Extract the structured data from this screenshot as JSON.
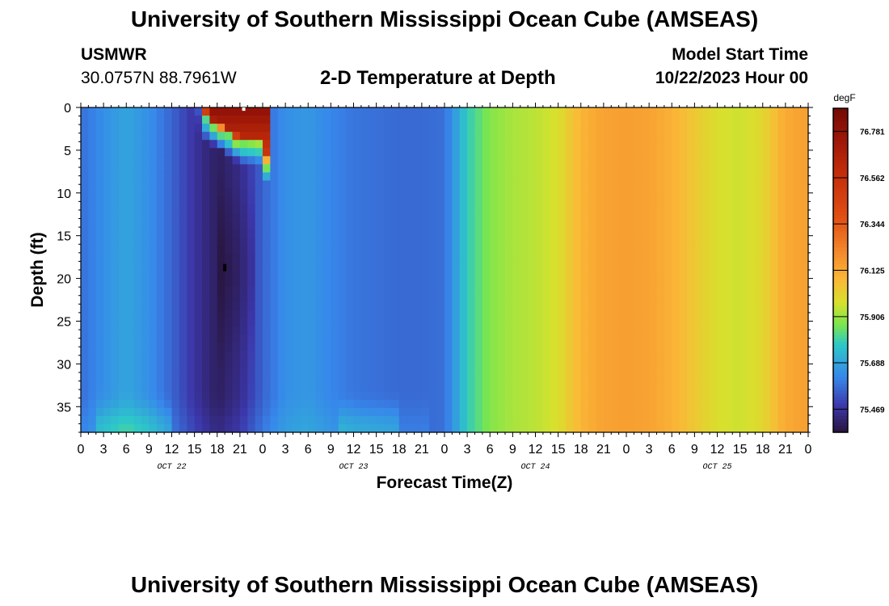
{
  "header": {
    "title": "University of Southern Mississippi Ocean Cube (AMSEAS)",
    "station": "USMWR",
    "coords": "30.0757N  88.7961W",
    "subtitle": "2-D Temperature at Depth",
    "start_label": "Model Start Time",
    "start_value": "10/22/2023 Hour 00"
  },
  "footer": {
    "title": "University of Southern Mississippi Ocean Cube (AMSEAS)"
  },
  "chart_data": {
    "type": "heatmap",
    "title": "2-D Temperature at Depth",
    "xlabel": "Forecast Time(Z)",
    "ylabel": "Depth (ft)",
    "x_range_hours": [
      0,
      96
    ],
    "y_range_ft": [
      0,
      38
    ],
    "x_tick_labels": [
      "0",
      "3",
      "6",
      "9",
      "12",
      "15",
      "18",
      "21",
      "0",
      "3",
      "6",
      "9",
      "12",
      "15",
      "18",
      "21",
      "0",
      "3",
      "6",
      "9",
      "12",
      "15",
      "18",
      "21",
      "0",
      "3",
      "6",
      "9",
      "12",
      "15",
      "18",
      "21",
      "0"
    ],
    "x_tick_step_hours": 3,
    "y_ticks": [
      0,
      5,
      10,
      15,
      20,
      25,
      30,
      35
    ],
    "y_tick_labels": [
      "0",
      "5",
      "10",
      "15",
      "20",
      "25",
      "30",
      "35"
    ],
    "day_labels": [
      {
        "label": "OCT 22",
        "hour": 12
      },
      {
        "label": "OCT 23",
        "hour": 36
      },
      {
        "label": "OCT 24",
        "hour": 60
      },
      {
        "label": "OCT 25",
        "hour": 84
      }
    ],
    "colorbar": {
      "unit": "degF",
      "min": 75.36,
      "max": 76.89,
      "tick_values": [
        75.469,
        75.688,
        75.906,
        76.125,
        76.344,
        76.562,
        76.781
      ],
      "tick_labels": [
        "75.469",
        "75.688",
        "75.906",
        "76.125",
        "76.344",
        "76.562",
        "76.781"
      ]
    },
    "time_profile_hours": [
      0,
      3,
      6,
      9,
      12,
      15,
      18,
      21,
      24,
      27,
      30,
      33,
      36,
      39,
      42,
      45,
      48,
      51,
      54,
      57,
      60,
      63,
      66,
      69,
      72,
      75,
      78,
      81,
      84,
      87,
      90,
      93,
      96
    ],
    "time_profile_degF": [
      75.58,
      75.64,
      75.69,
      75.64,
      75.56,
      75.47,
      75.4,
      75.45,
      75.56,
      75.64,
      75.66,
      75.62,
      75.59,
      75.58,
      75.57,
      75.57,
      75.58,
      75.78,
      75.88,
      75.92,
      75.94,
      75.98,
      76.09,
      76.14,
      76.15,
      76.14,
      76.1,
      76.04,
      75.98,
      75.96,
      76.0,
      76.12,
      76.15
    ],
    "surface_warm_patch": {
      "hour_start": 16,
      "hour_end": 25,
      "depth_max_ft": 5,
      "peak_degF": 76.8
    },
    "markers": [
      {
        "label": "white",
        "hour": 21.5,
        "depth_ft": 0.2
      },
      {
        "label": "black",
        "hour": 19,
        "depth_ft": 18.5
      }
    ]
  }
}
